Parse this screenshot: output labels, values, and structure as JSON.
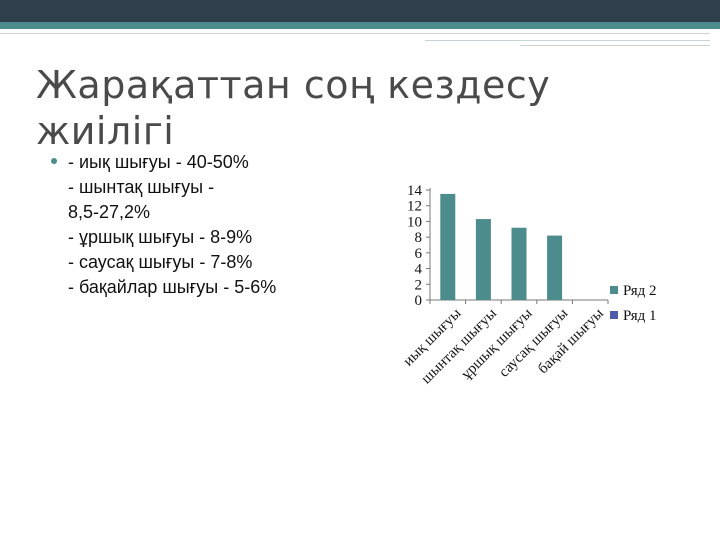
{
  "slide": {
    "title": "Жарақаттан соң кездесу жиілігі",
    "bullet_text": "-  иық шығуы - 40-50%\n- шынтақ шығуы -\n8,5-27,2%\n- ұршық шығуы - 8-9%\n- саусақ шығуы - 7-8%\n- бақайлар шығуы - 5-6%"
  },
  "colors": {
    "top_band": "#2f3f4c",
    "accent": "#4d8c8c",
    "series_2": "#4d8c8c",
    "series_1": "#4f5aa8"
  },
  "chart_data": {
    "type": "bar",
    "categories": [
      "иық шығуы",
      "шынтақ шығуы",
      "ұршық шығуы",
      "саусақ шығуы",
      "бақай шығуы"
    ],
    "series": [
      {
        "name": "Ряд 2",
        "values": [
          13.5,
          10.3,
          9.2,
          8.2,
          0
        ]
      },
      {
        "name": "Ряд 1",
        "values": [
          0,
          0,
          0,
          0,
          0
        ]
      }
    ],
    "y_ticks": [
      "0",
      "2",
      "4",
      "6",
      "8",
      "10",
      "12",
      "14"
    ],
    "ylim": [
      0,
      14
    ],
    "grid": false,
    "legend_position": "right",
    "title": "",
    "xlabel": "",
    "ylabel": ""
  }
}
